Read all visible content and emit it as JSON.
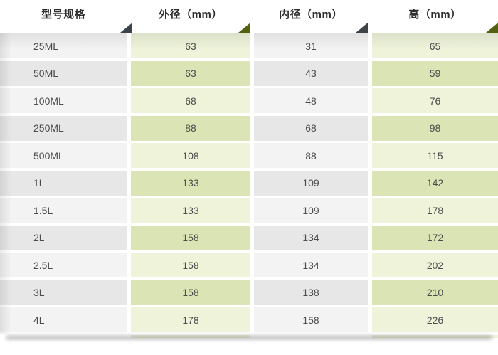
{
  "header": {
    "columns": [
      {
        "label": "型号规格"
      },
      {
        "label": "外径（mm）"
      },
      {
        "label": "内径（mm）"
      },
      {
        "label": "高（mm）"
      }
    ]
  },
  "rows": [
    {
      "model": "25ML",
      "outer_mm": "63",
      "inner_mm": "31",
      "height_mm": "65"
    },
    {
      "model": "50ML",
      "outer_mm": "63",
      "inner_mm": "43",
      "height_mm": "59"
    },
    {
      "model": "100ML",
      "outer_mm": "68",
      "inner_mm": "48",
      "height_mm": "76"
    },
    {
      "model": "250ML",
      "outer_mm": "88",
      "inner_mm": "68",
      "height_mm": "98"
    },
    {
      "model": "500ML",
      "outer_mm": "108",
      "inner_mm": "88",
      "height_mm": "115"
    },
    {
      "model": "1L",
      "outer_mm": "133",
      "inner_mm": "109",
      "height_mm": "142"
    },
    {
      "model": "1.5L",
      "outer_mm": "133",
      "inner_mm": "109",
      "height_mm": "178"
    },
    {
      "model": "2L",
      "outer_mm": "158",
      "inner_mm": "134",
      "height_mm": "172"
    },
    {
      "model": "2.5L",
      "outer_mm": "158",
      "inner_mm": "134",
      "height_mm": "202"
    },
    {
      "model": "3L",
      "outer_mm": "158",
      "inner_mm": "138",
      "height_mm": "210"
    },
    {
      "model": "4L",
      "outer_mm": "178",
      "inner_mm": "158",
      "height_mm": "226"
    }
  ],
  "chart_data": {
    "type": "table",
    "title": "",
    "columns": [
      "型号规格",
      "外径（mm）",
      "内径（mm）",
      "高（mm）"
    ],
    "rows": [
      [
        "25ML",
        63,
        31,
        65
      ],
      [
        "50ML",
        63,
        43,
        59
      ],
      [
        "100ML",
        68,
        48,
        76
      ],
      [
        "250ML",
        88,
        68,
        98
      ],
      [
        "500ML",
        108,
        88,
        115
      ],
      [
        "1L",
        133,
        109,
        142
      ],
      [
        "1.5L",
        133,
        109,
        178
      ],
      [
        "2L",
        158,
        134,
        172
      ],
      [
        "2.5L",
        158,
        134,
        202
      ],
      [
        "3L",
        158,
        138,
        210
      ],
      [
        "4L",
        178,
        158,
        226
      ]
    ],
    "layout": "alternating row stripes; gray columns 1 and 3, green columns 2 and 4; header with folded-corner triangles"
  },
  "colors": {
    "row_gray_light": "#f3f3f3",
    "row_gray_dark": "#e7e7e7",
    "row_green_light": "#eef3da",
    "row_green_dark": "#dae4b5",
    "triangle_dark": "#3d4449",
    "triangle_olive": "#556011",
    "header_text": "#2e2e2e",
    "cell_text": "#4d4d4d"
  }
}
